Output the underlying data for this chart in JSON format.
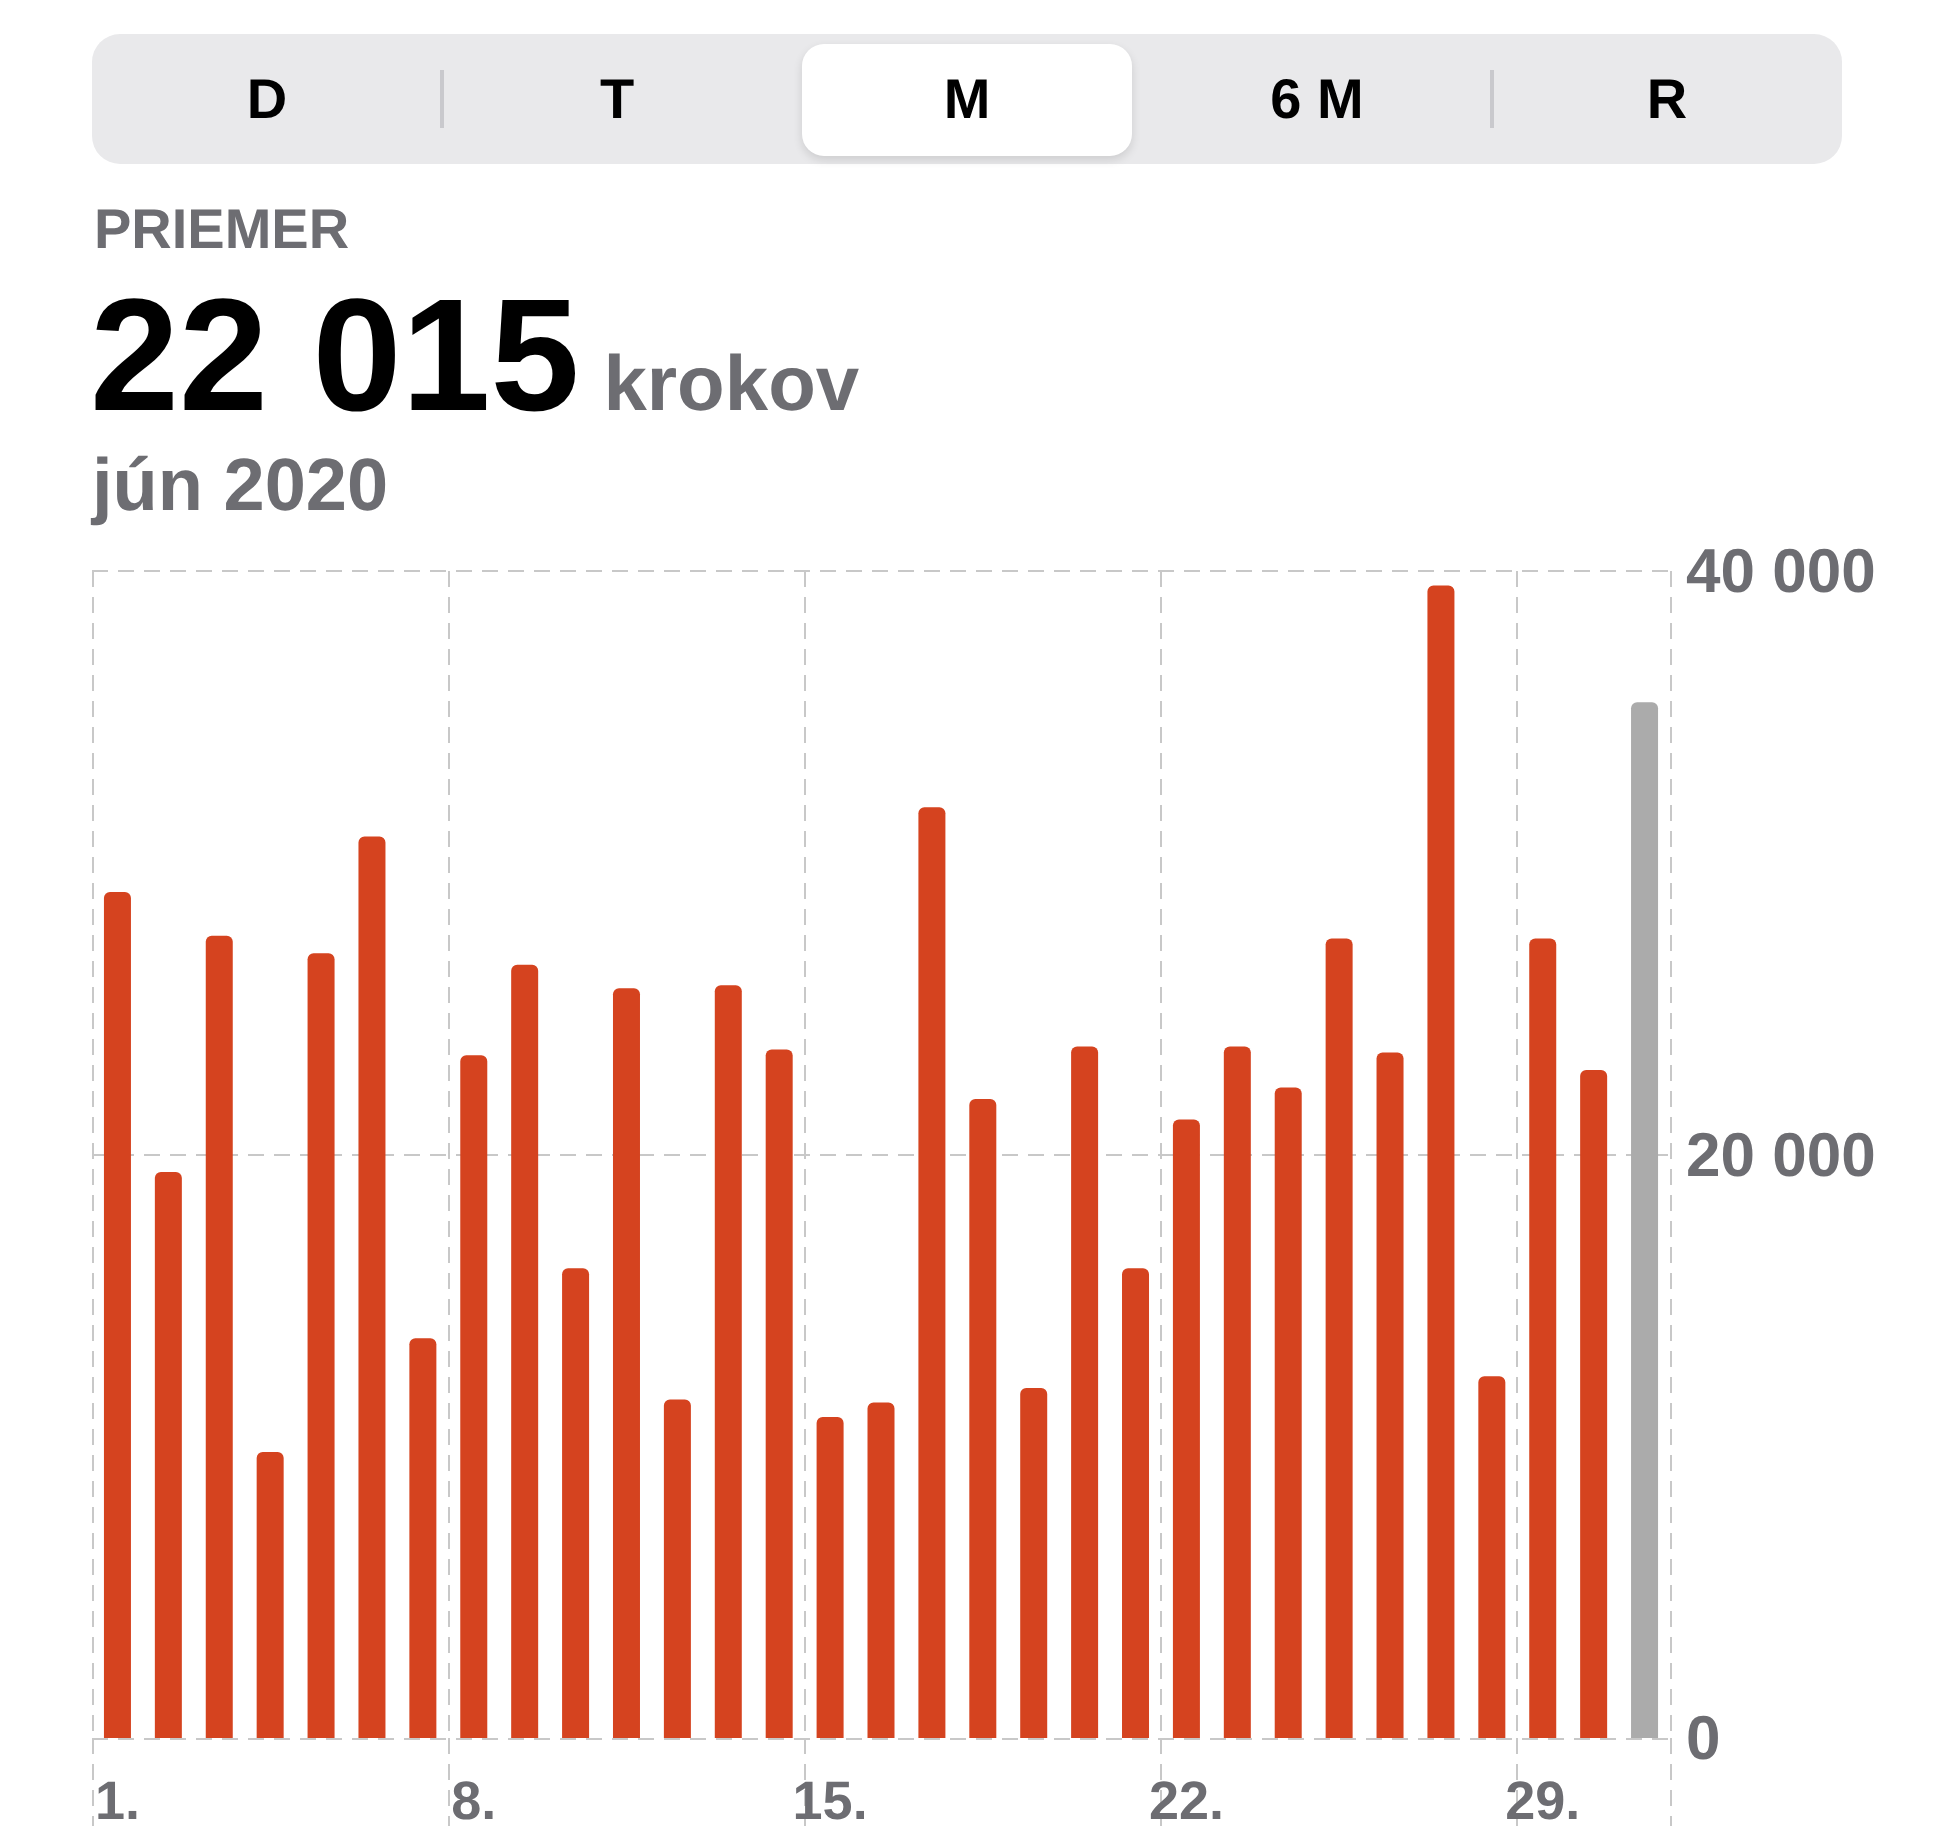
{
  "chart_data": {
    "type": "bar",
    "title": "PRIEMER",
    "subtitle": "jún 2020",
    "annotations": [
      "D",
      "T",
      "M",
      "6 M",
      "R",
      "22 015",
      "krokov"
    ],
    "categories": [
      "1.",
      null,
      null,
      null,
      null,
      null,
      null,
      "8.",
      null,
      null,
      null,
      null,
      null,
      null,
      "15.",
      null,
      null,
      null,
      null,
      null,
      null,
      "22.",
      null,
      null,
      null,
      null,
      null,
      null,
      "29.",
      null,
      null
    ],
    "values": [
      29000,
      19400,
      27500,
      9800,
      26900,
      30900,
      13700,
      23400,
      26500,
      16100,
      25700,
      11600,
      25800,
      23600,
      11000,
      11500,
      31900,
      21900,
      12000,
      23700,
      16100,
      21200,
      23700,
      22300,
      27400,
      23500,
      39500,
      12400,
      27400,
      22900,
      35500
    ],
    "colors": [
      "#d5431f",
      "#d5431f",
      "#d5431f",
      "#d5431f",
      "#d5431f",
      "#d5431f",
      "#d5431f",
      "#d5431f",
      "#d5431f",
      "#d5431f",
      "#d5431f",
      "#d5431f",
      "#d5431f",
      "#d5431f",
      "#d5431f",
      "#d5431f",
      "#d5431f",
      "#d5431f",
      "#d5431f",
      "#d5431f",
      "#d5431f",
      "#d5431f",
      "#d5431f",
      "#d5431f",
      "#d5431f",
      "#d5431f",
      "#d5431f",
      "#d5431f",
      "#d5431f",
      "#d5431f",
      "#ababab"
    ],
    "ylim": [
      0,
      40000
    ],
    "yticks": [
      0,
      {
        "value": 20000,
        "label": "20 000"
      },
      {
        "value": 40000,
        "label": "40 000"
      }
    ],
    "grid": true
  }
}
